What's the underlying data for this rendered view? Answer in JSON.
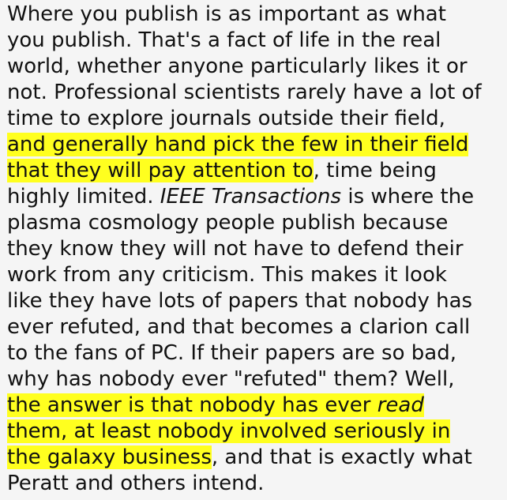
{
  "colors": {
    "background": "#f5f5f5",
    "text": "#111111",
    "highlight": "#ffff1f"
  },
  "passage": {
    "lines": [
      [
        {
          "text": "Where you publish is as important as what"
        }
      ],
      [
        {
          "text": "you publish. That's a fact of life in the real"
        }
      ],
      [
        {
          "text": "world, whether anyone particularly likes it or"
        }
      ],
      [
        {
          "text": "not. Professional scientists rarely have a lot of"
        }
      ],
      [
        {
          "text": "time to explore journals outside their field,"
        }
      ],
      [
        {
          "text": "and generally hand pick the few in their field",
          "highlight": true
        }
      ],
      [
        {
          "text": "that they will pay attention to",
          "highlight": true
        },
        {
          "text": ", time being"
        }
      ],
      [
        {
          "text": "highly limited. "
        },
        {
          "text": "IEEE Transactions",
          "italic": true
        },
        {
          "text": " is where the"
        }
      ],
      [
        {
          "text": "plasma cosmology people publish because"
        }
      ],
      [
        {
          "text": "they know they will not have to defend their"
        }
      ],
      [
        {
          "text": "work from any criticism. This makes it look"
        }
      ],
      [
        {
          "text": "like they have lots of papers that nobody has"
        }
      ],
      [
        {
          "text": "ever refuted, and that becomes a clarion call"
        }
      ],
      [
        {
          "text": "to the fans of PC. If their papers are so bad,"
        }
      ],
      [
        {
          "text": "why has nobody ever \"refuted\" them? Well,"
        }
      ],
      [
        {
          "text": "the answer is that nobody has ever ",
          "highlight": true
        },
        {
          "text": "read",
          "highlight": true,
          "italic": true
        }
      ],
      [
        {
          "text": "them, at least nobody involved seriously in",
          "highlight": true
        }
      ],
      [
        {
          "text": "the galaxy business",
          "highlight": true
        },
        {
          "text": ", and that is exactly what"
        }
      ],
      [
        {
          "text": "Peratt and others intend."
        }
      ]
    ]
  }
}
